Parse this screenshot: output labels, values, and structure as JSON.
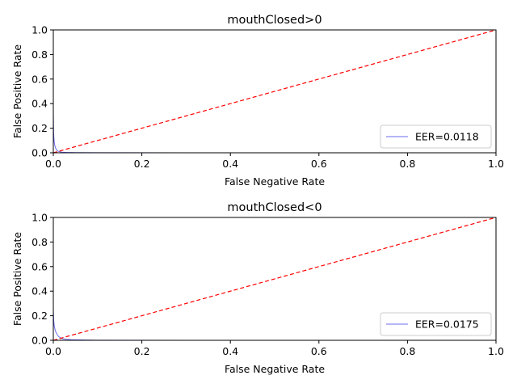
{
  "chart_data": [
    {
      "type": "line",
      "title": "mouthClosed>0",
      "xlabel": "False Negative Rate",
      "ylabel": "False Positive Rate",
      "xlim": [
        0,
        1
      ],
      "ylim": [
        0,
        1
      ],
      "xticks": [
        0,
        0.2,
        0.4,
        0.6,
        0.8,
        1
      ],
      "yticks": [
        0,
        0.2,
        0.4,
        0.6,
        0.8,
        1
      ],
      "xtick_labels": [
        "0.0",
        "0.2",
        "0.4",
        "0.6",
        "0.8",
        "1.0"
      ],
      "ytick_labels": [
        "0.0",
        "0.2",
        "0.4",
        "0.6",
        "0.8",
        "1.0"
      ],
      "grid": false,
      "legend_position": "lower-right",
      "series": [
        {
          "name": "EER=0.0118",
          "color": "#6b6bf0",
          "style": "solid",
          "x": [
            0,
            0.0005,
            0.001,
            0.002,
            0.003,
            0.005,
            0.007,
            0.009,
            0.0118,
            0.015,
            0.02,
            0.03,
            0.05,
            0.1,
            0.3,
            0.6,
            1.0
          ],
          "y": [
            0.35,
            0.2,
            0.14,
            0.09,
            0.065,
            0.04,
            0.025,
            0.017,
            0.0118,
            0.008,
            0.005,
            0.003,
            0.0015,
            0.0005,
            0.0002,
            0.0001,
            0.0
          ]
        },
        {
          "name": "",
          "color": "#ff0000",
          "style": "dashed",
          "x": [
            0,
            1
          ],
          "y": [
            0,
            1
          ]
        }
      ]
    },
    {
      "type": "line",
      "title": "mouthClosed<0",
      "xlabel": "False Negative Rate",
      "ylabel": "False Positive Rate",
      "xlim": [
        0,
        1
      ],
      "ylim": [
        0,
        1
      ],
      "xticks": [
        0,
        0.2,
        0.4,
        0.6,
        0.8,
        1
      ],
      "yticks": [
        0,
        0.2,
        0.4,
        0.6,
        0.8,
        1
      ],
      "xtick_labels": [
        "0.0",
        "0.2",
        "0.4",
        "0.6",
        "0.8",
        "1.0"
      ],
      "ytick_labels": [
        "0.0",
        "0.2",
        "0.4",
        "0.6",
        "0.8",
        "1.0"
      ],
      "grid": false,
      "legend_position": "lower-right",
      "series": [
        {
          "name": "EER=0.0175",
          "color": "#6b6bf0",
          "style": "solid",
          "x": [
            0,
            0.0005,
            0.001,
            0.002,
            0.004,
            0.006,
            0.009,
            0.012,
            0.0175,
            0.022,
            0.03,
            0.04,
            0.06,
            0.1,
            0.3,
            0.6,
            1.0
          ],
          "y": [
            0.25,
            0.2,
            0.16,
            0.12,
            0.085,
            0.065,
            0.045,
            0.03,
            0.0175,
            0.012,
            0.008,
            0.005,
            0.003,
            0.001,
            0.0003,
            0.0001,
            0.0
          ]
        },
        {
          "name": "",
          "color": "#ff0000",
          "style": "dashed",
          "x": [
            0,
            1
          ],
          "y": [
            0,
            1
          ]
        }
      ]
    }
  ]
}
